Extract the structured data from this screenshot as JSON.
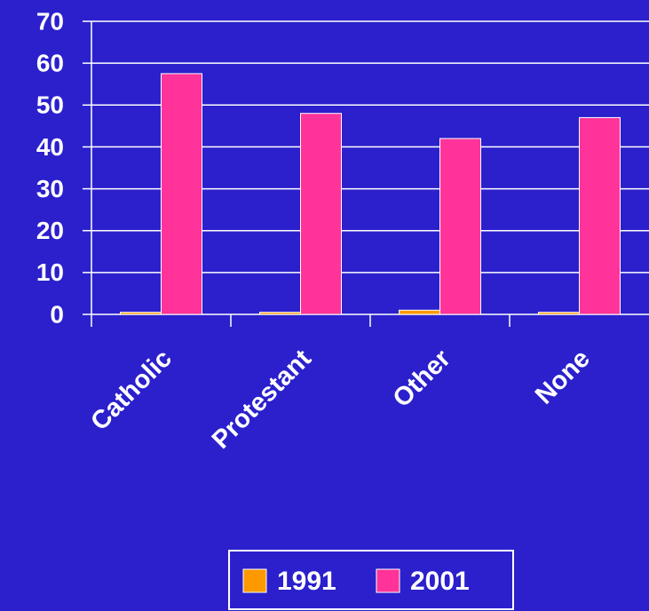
{
  "chart_data": {
    "type": "bar",
    "categories": [
      "Catholic",
      "Protestant",
      "Other",
      "None"
    ],
    "series": [
      {
        "name": "1991",
        "color": "#ff9900",
        "values": [
          0.5,
          0.5,
          1,
          0.5
        ]
      },
      {
        "name": "2001",
        "color": "#ff3399",
        "values": [
          57.5,
          48,
          42,
          47
        ]
      }
    ],
    "ylim": [
      0,
      70
    ],
    "yticks": [
      0,
      10,
      20,
      30,
      40,
      50,
      60,
      70
    ],
    "grid": true,
    "legend": "bottom"
  }
}
